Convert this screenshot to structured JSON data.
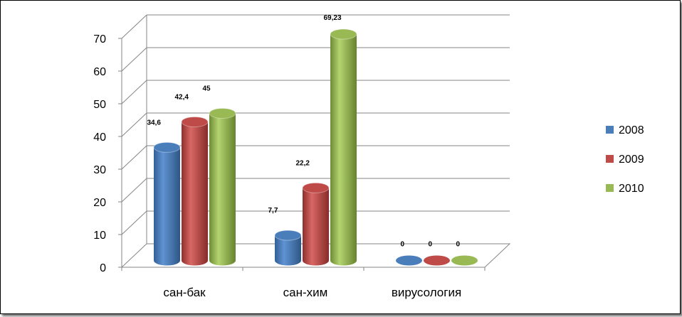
{
  "chart_data": {
    "type": "bar",
    "style": "3d-cylinder",
    "categories": [
      "сан-бак",
      "сан-хим",
      "вирусология"
    ],
    "series": [
      {
        "name": "2008",
        "values": [
          34.6,
          7.7,
          0
        ],
        "labels": [
          "34,6",
          "7,7",
          "0"
        ],
        "color": "#4a7ebb"
      },
      {
        "name": "2009",
        "values": [
          42.4,
          22.2,
          0
        ],
        "labels": [
          "42,4",
          "22,2",
          "0"
        ],
        "color": "#be4b48"
      },
      {
        "name": "2010",
        "values": [
          45,
          69.23,
          0
        ],
        "labels": [
          "45",
          "69,23",
          "0"
        ],
        "color": "#98b954"
      }
    ],
    "ylim": [
      0,
      70
    ],
    "yticks": [
      0,
      10,
      20,
      30,
      40,
      50,
      60,
      70
    ],
    "grid": true,
    "legend": "right"
  }
}
